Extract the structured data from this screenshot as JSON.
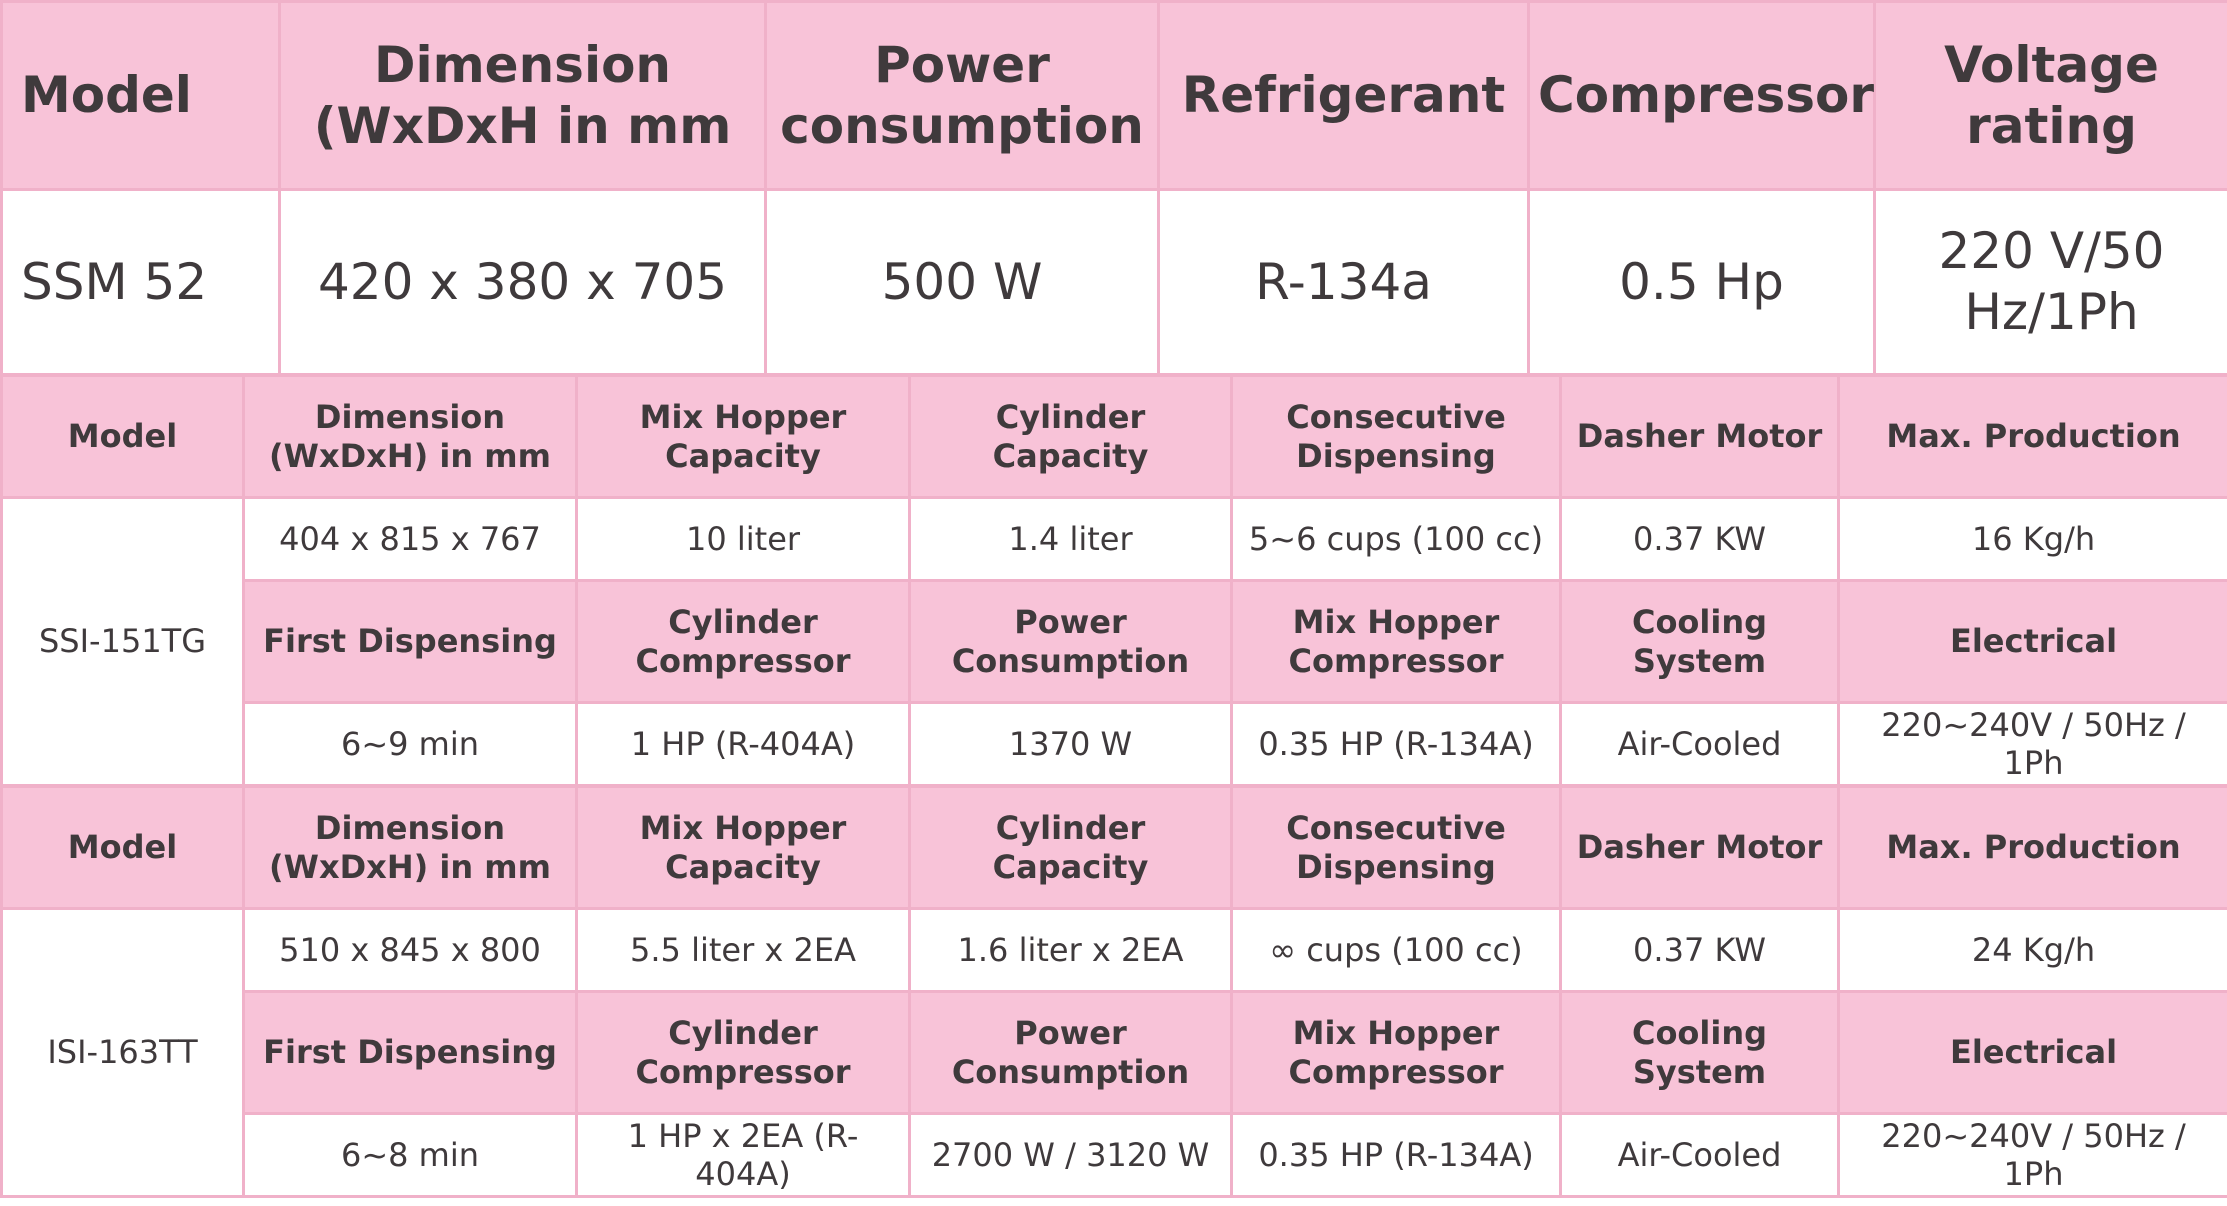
{
  "table1": {
    "headers": [
      "Model",
      "Dimension\n(WxDxH in mm",
      "Power\nconsumption",
      "Refrigerant",
      "Compressor",
      "Voltage\nrating"
    ],
    "values": [
      "SSM 52",
      "420 x 380 x 705",
      "500 W",
      "R-134a",
      "0.5 Hp",
      "220 V/50\nHz/1Ph"
    ]
  },
  "table2": {
    "model_header": "Model",
    "model": "SSI-151TG",
    "headers_a": [
      "Dimension\n(WxDxH) in mm",
      "Mix Hopper\nCapacity",
      "Cylinder\nCapacity",
      "Consecutive\nDispensing",
      "Dasher Motor",
      "Max. Production"
    ],
    "values_a": [
      "404 x 815 x 767",
      "10 liter",
      "1.4 liter",
      "5~6 cups (100 cc)",
      "0.37 KW",
      "16 Kg/h"
    ],
    "headers_b": [
      "First Dispensing",
      "Cylinder\nCompressor",
      "Power\nConsumption",
      "Mix Hopper\nCompressor",
      "Cooling System",
      "Electrical"
    ],
    "values_b": [
      "6~9 min",
      "1 HP (R-404A)",
      "1370 W",
      "0.35 HP (R-134A)",
      "Air-Cooled",
      "220~240V / 50Hz / 1Ph"
    ]
  },
  "table3": {
    "model_header": "Model",
    "model": "ISI-163TT",
    "headers_a": [
      "Dimension\n(WxDxH) in mm",
      "Mix Hopper\nCapacity",
      "Cylinder\nCapacity",
      "Consecutive\nDispensing",
      "Dasher Motor",
      "Max. Production"
    ],
    "values_a": [
      "510 x 845 x 800",
      "5.5 liter x 2EA",
      "1.6 liter x 2EA",
      "∞ cups (100 cc)",
      "0.37 KW",
      "24 Kg/h"
    ],
    "headers_b": [
      "First Dispensing",
      "Cylinder\nCompressor",
      "Power\nConsumption",
      "Mix Hopper\nCompressor",
      "Cooling System",
      "Electrical"
    ],
    "values_b": [
      "6~8 min",
      "1 HP x 2EA (R-404A)",
      "2700 W / 3120 W",
      "0.35 HP (R-134A)",
      "Air-Cooled",
      "220~240V / 50Hz / 1Ph"
    ]
  }
}
